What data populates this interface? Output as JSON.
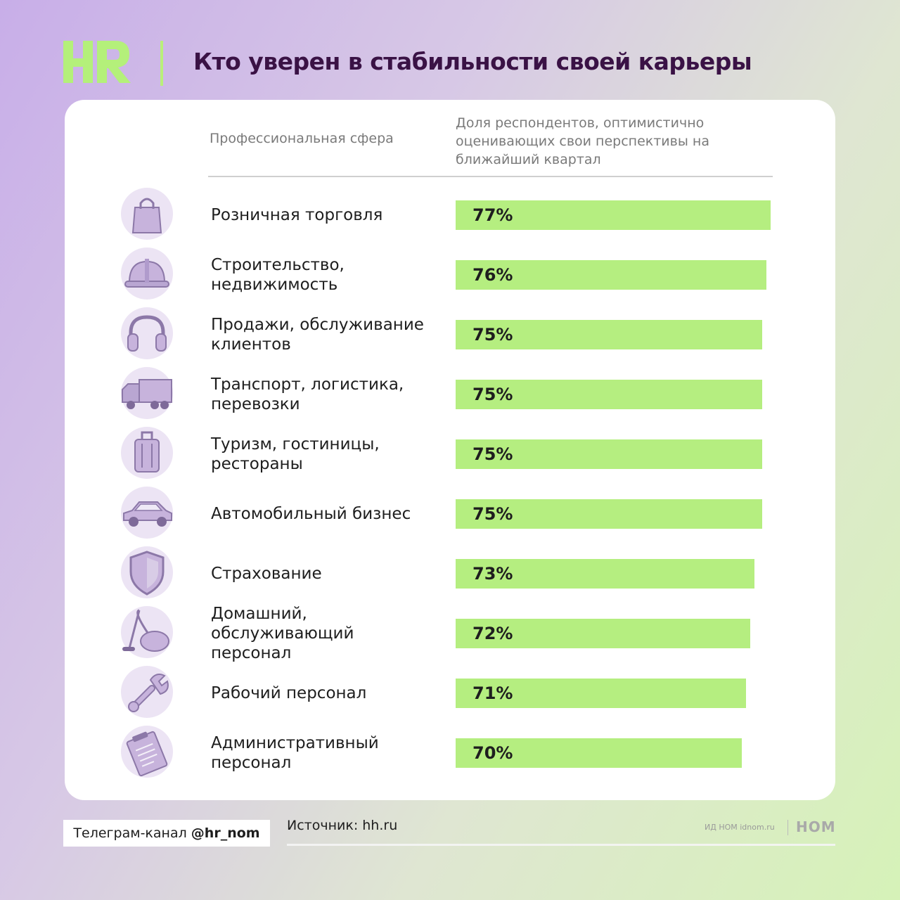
{
  "logo_text": "HR",
  "title": "Кто уверен в стабильности своей карьеры",
  "colors": {
    "accent_bar": "#b5ee80",
    "title": "#3a1245",
    "icon_tint": "#c7b3dc"
  },
  "chart_data": {
    "type": "bar",
    "orientation": "horizontal",
    "column_headers": {
      "category": "Профессиональная сфера",
      "value": "Доля респондентов, оптимистично оценивающих свои перспективы на ближайший квартал"
    },
    "categories": [
      "Розничная торговля",
      "Строительство, недвижимость",
      "Продажи, обслуживание клиентов",
      "Транспорт, логистика, перевозки",
      "Туризм, гостиницы, рестораны",
      "Автомобильный бизнес",
      "Страхование",
      "Домашний, обслуживающий персонал",
      "Рабочий персонал",
      "Административный персонал"
    ],
    "values": [
      77,
      76,
      75,
      75,
      75,
      75,
      73,
      72,
      71,
      70
    ],
    "value_labels": [
      "77%",
      "76%",
      "75%",
      "75%",
      "75%",
      "75%",
      "73%",
      "72%",
      "71%",
      "70%"
    ],
    "icons": [
      "shopping-bag-icon",
      "hard-hat-icon",
      "headphones-icon",
      "truck-icon",
      "suitcase-icon",
      "car-icon",
      "shield-icon",
      "vacuum-cleaner-icon",
      "wrench-icon",
      "clipboard-icon"
    ],
    "unit": "%",
    "grid": false,
    "legend": "none"
  },
  "footer": {
    "channel_prefix": "Телеграм-канал ",
    "channel_handle": "@hr_nom",
    "source": "Источник: hh.ru",
    "publisher": "ИД НОМ idnom.ru",
    "publisher_logo": "НОМ"
  }
}
